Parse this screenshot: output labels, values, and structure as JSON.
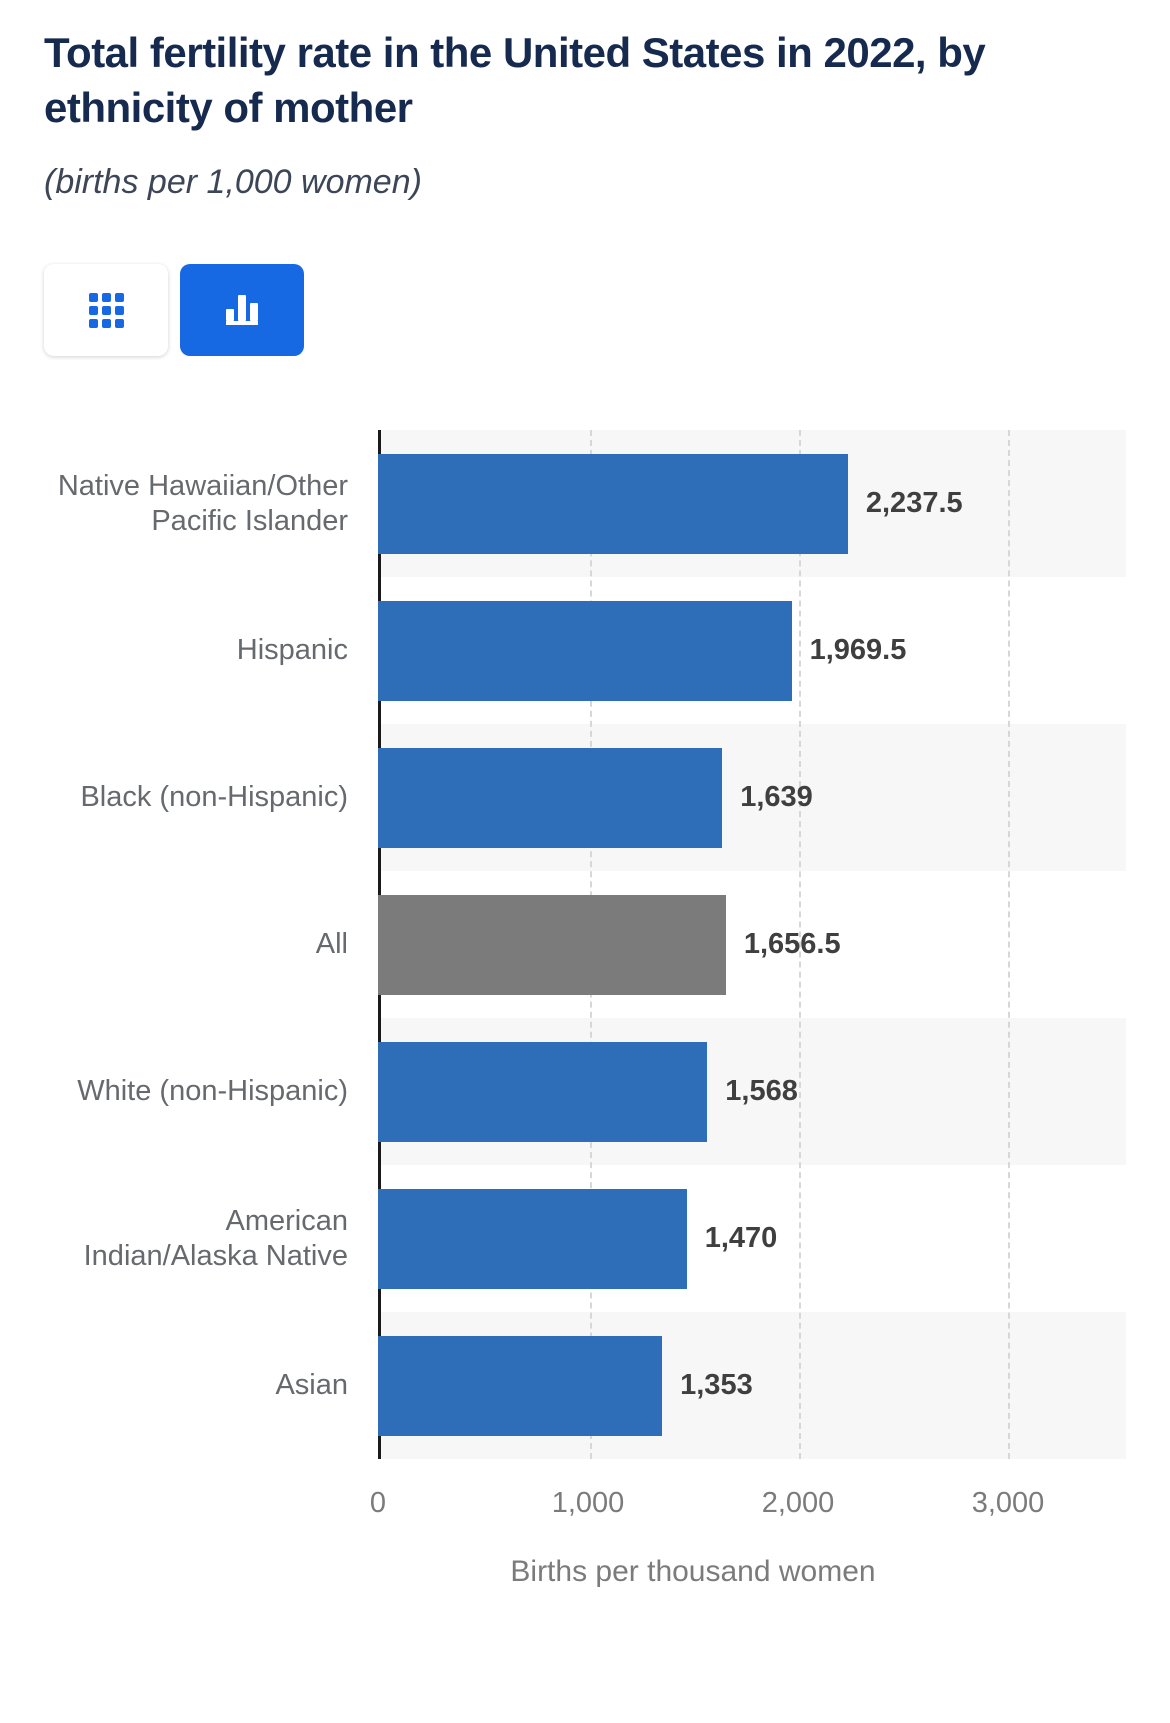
{
  "view_toggle": {
    "buttons": [
      {
        "name": "table-view",
        "icon": "grid-icon",
        "active": false
      },
      {
        "name": "chart-view",
        "icon": "bar-chart-icon",
        "active": true
      }
    ],
    "active_color": "#1668e3"
  },
  "colors": {
    "bar_blue": "#2e6eb8",
    "bar_gray": "#7b7b7b",
    "title": "#16294f",
    "stripe": "#f7f7f7"
  },
  "chart_data": {
    "type": "bar",
    "orientation": "horizontal",
    "title": "Total fertility rate in the United States in 2022, by ethnicity of mother",
    "subtitle": "(births per 1,000 women)",
    "xlabel": "Births per thousand women",
    "xlim": [
      0,
      3000
    ],
    "xticks": [
      0,
      1000,
      2000,
      3000
    ],
    "xtick_labels": [
      "0",
      "1,000",
      "2,000",
      "3,000"
    ],
    "grid": "dashed-vertical",
    "categories": [
      "Native Hawaiian/Other Pacific Islander",
      "Hispanic",
      "Black (non-Hispanic)",
      "All",
      "White (non-Hispanic)",
      "American Indian/Alaska Native",
      "Asian"
    ],
    "values": [
      2237.5,
      1969.5,
      1639,
      1656.5,
      1568,
      1470,
      1353
    ],
    "value_labels": [
      "2,237.5",
      "1,969.5",
      "1,639",
      "1,656.5",
      "1,568",
      "1,470",
      "1,353"
    ],
    "bar_colors": [
      "#2e6eb8",
      "#2e6eb8",
      "#2e6eb8",
      "#7b7b7b",
      "#2e6eb8",
      "#2e6eb8",
      "#2e6eb8"
    ]
  }
}
